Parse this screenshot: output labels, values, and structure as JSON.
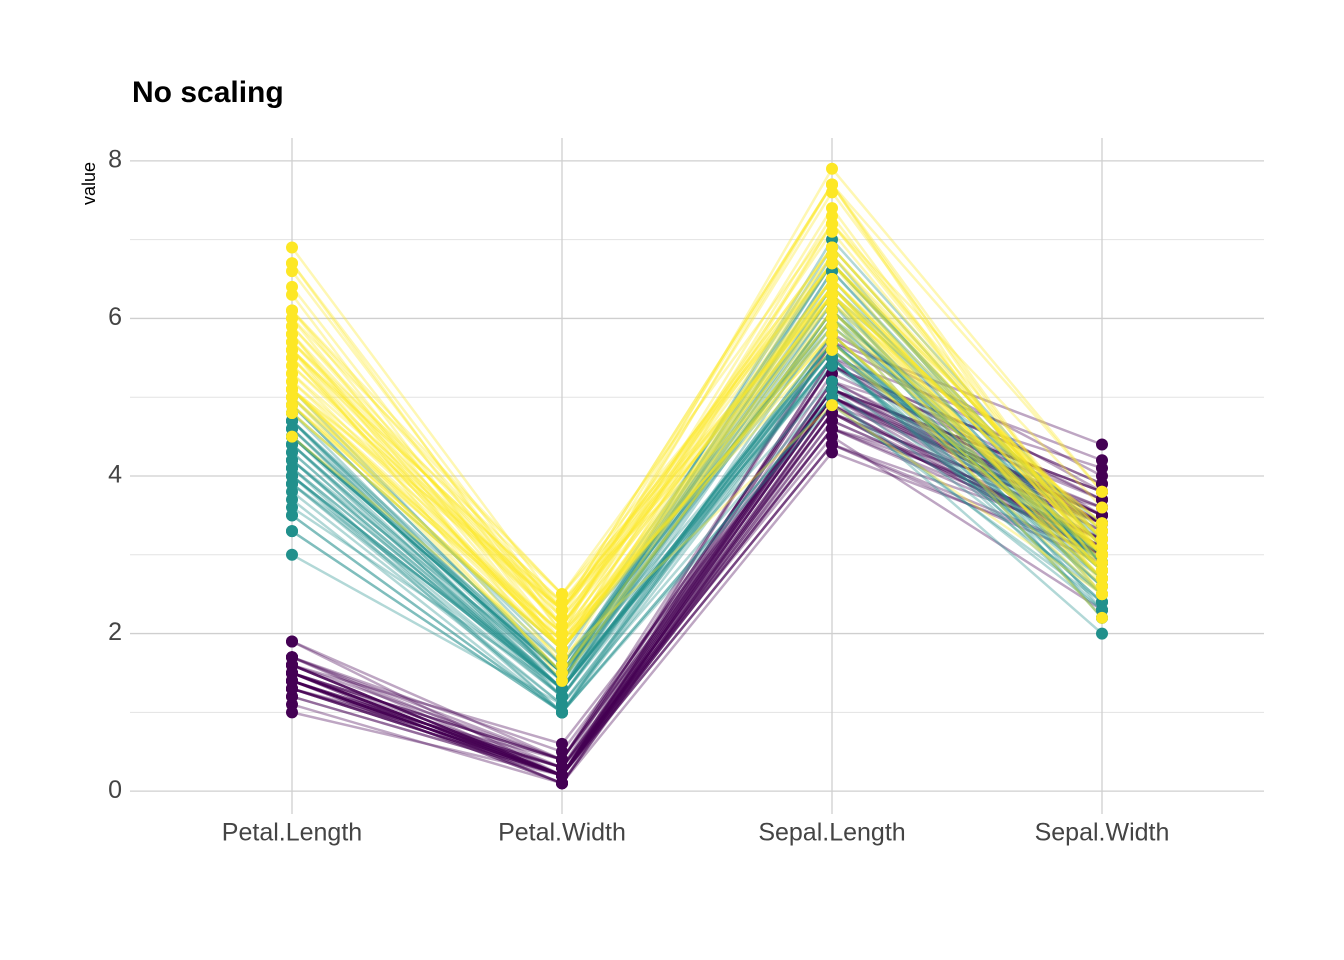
{
  "chart_data": {
    "type": "parallel",
    "title": "No scaling",
    "y_label": "value",
    "categories": [
      "Petal.Length",
      "Petal.Width",
      "Sepal.Length",
      "Sepal.Width"
    ],
    "ylim": [
      -0.29,
      8.29
    ],
    "yticks": [
      0,
      2,
      4,
      6,
      8
    ],
    "minor_yticks": [
      1,
      3,
      5,
      7
    ],
    "grid": true,
    "series": [
      {
        "color": "#440154",
        "lines": [
          [
            1.4,
            0.2,
            5.1,
            3.5
          ],
          [
            1.4,
            0.2,
            4.9,
            3.0
          ],
          [
            1.3,
            0.2,
            4.7,
            3.2
          ],
          [
            1.5,
            0.2,
            4.6,
            3.1
          ],
          [
            1.4,
            0.2,
            5.0,
            3.6
          ],
          [
            1.7,
            0.4,
            5.4,
            3.9
          ],
          [
            1.4,
            0.3,
            4.6,
            3.4
          ],
          [
            1.5,
            0.2,
            5.0,
            3.4
          ],
          [
            1.4,
            0.2,
            4.4,
            2.9
          ],
          [
            1.5,
            0.1,
            4.9,
            3.1
          ],
          [
            1.5,
            0.2,
            5.4,
            3.7
          ],
          [
            1.6,
            0.2,
            4.8,
            3.4
          ],
          [
            1.4,
            0.1,
            4.8,
            3.0
          ],
          [
            1.1,
            0.1,
            4.3,
            3.0
          ],
          [
            1.2,
            0.2,
            5.8,
            4.0
          ],
          [
            1.5,
            0.4,
            5.7,
            4.4
          ],
          [
            1.3,
            0.4,
            5.4,
            3.9
          ],
          [
            1.4,
            0.3,
            5.1,
            3.5
          ],
          [
            1.7,
            0.3,
            5.7,
            3.8
          ],
          [
            1.5,
            0.3,
            5.1,
            3.8
          ],
          [
            1.7,
            0.2,
            5.4,
            3.4
          ],
          [
            1.5,
            0.4,
            5.1,
            3.7
          ],
          [
            1.0,
            0.2,
            4.6,
            3.6
          ],
          [
            1.7,
            0.5,
            5.1,
            3.3
          ],
          [
            1.9,
            0.2,
            4.8,
            3.4
          ],
          [
            1.6,
            0.2,
            5.0,
            3.0
          ],
          [
            1.6,
            0.4,
            5.0,
            3.4
          ],
          [
            1.5,
            0.2,
            5.2,
            3.5
          ],
          [
            1.4,
            0.2,
            5.2,
            3.4
          ],
          [
            1.6,
            0.2,
            4.7,
            3.2
          ],
          [
            1.6,
            0.2,
            4.8,
            3.1
          ],
          [
            1.5,
            0.4,
            5.4,
            3.4
          ],
          [
            1.5,
            0.1,
            5.2,
            4.1
          ],
          [
            1.4,
            0.2,
            5.5,
            4.2
          ],
          [
            1.5,
            0.2,
            4.9,
            3.1
          ],
          [
            1.2,
            0.2,
            5.0,
            3.2
          ],
          [
            1.3,
            0.2,
            5.5,
            3.5
          ],
          [
            1.4,
            0.1,
            4.9,
            3.6
          ],
          [
            1.3,
            0.2,
            4.4,
            3.0
          ],
          [
            1.5,
            0.2,
            5.1,
            3.4
          ],
          [
            1.3,
            0.3,
            5.0,
            3.5
          ],
          [
            1.3,
            0.3,
            4.5,
            2.3
          ],
          [
            1.3,
            0.2,
            4.4,
            3.2
          ],
          [
            1.6,
            0.6,
            5.0,
            3.5
          ],
          [
            1.9,
            0.4,
            5.1,
            3.8
          ],
          [
            1.4,
            0.3,
            4.8,
            3.0
          ],
          [
            1.6,
            0.2,
            5.1,
            3.8
          ],
          [
            1.4,
            0.2,
            4.6,
            3.2
          ],
          [
            1.5,
            0.2,
            5.3,
            3.7
          ],
          [
            1.4,
            0.2,
            5.0,
            3.3
          ]
        ]
      },
      {
        "color": "#21908C",
        "lines": [
          [
            4.7,
            1.4,
            7.0,
            3.2
          ],
          [
            4.5,
            1.5,
            6.4,
            3.2
          ],
          [
            4.9,
            1.5,
            6.9,
            3.1
          ],
          [
            4.0,
            1.3,
            5.5,
            2.3
          ],
          [
            4.6,
            1.5,
            6.5,
            2.8
          ],
          [
            4.5,
            1.3,
            5.7,
            2.8
          ],
          [
            4.7,
            1.6,
            6.3,
            3.3
          ],
          [
            3.3,
            1.0,
            4.9,
            2.4
          ],
          [
            4.6,
            1.3,
            6.6,
            2.9
          ],
          [
            3.9,
            1.4,
            5.2,
            2.7
          ],
          [
            3.5,
            1.0,
            5.0,
            2.0
          ],
          [
            4.2,
            1.5,
            5.9,
            3.0
          ],
          [
            4.0,
            1.0,
            6.0,
            2.2
          ],
          [
            4.7,
            1.4,
            6.1,
            2.9
          ],
          [
            3.6,
            1.3,
            5.6,
            2.9
          ],
          [
            4.4,
            1.4,
            6.7,
            3.1
          ],
          [
            4.5,
            1.5,
            5.6,
            3.0
          ],
          [
            4.1,
            1.0,
            5.8,
            2.7
          ],
          [
            4.5,
            1.5,
            6.2,
            2.2
          ],
          [
            3.9,
            1.1,
            5.6,
            2.5
          ],
          [
            4.8,
            1.8,
            5.9,
            3.2
          ],
          [
            4.0,
            1.3,
            6.1,
            2.8
          ],
          [
            4.9,
            1.5,
            6.3,
            2.5
          ],
          [
            4.7,
            1.2,
            6.1,
            2.8
          ],
          [
            4.3,
            1.3,
            6.4,
            2.9
          ],
          [
            4.4,
            1.4,
            6.6,
            3.0
          ],
          [
            4.8,
            1.4,
            6.8,
            2.8
          ],
          [
            5.0,
            1.7,
            6.7,
            3.0
          ],
          [
            4.5,
            1.5,
            6.0,
            2.9
          ],
          [
            3.5,
            1.0,
            5.7,
            2.6
          ],
          [
            3.8,
            1.1,
            5.5,
            2.4
          ],
          [
            3.7,
            1.0,
            5.5,
            2.4
          ],
          [
            3.9,
            1.2,
            5.8,
            2.7
          ],
          [
            5.1,
            1.6,
            6.0,
            2.7
          ],
          [
            4.5,
            1.5,
            5.4,
            3.0
          ],
          [
            4.5,
            1.6,
            6.0,
            3.4
          ],
          [
            4.7,
            1.5,
            6.7,
            3.1
          ],
          [
            4.4,
            1.3,
            6.3,
            2.3
          ],
          [
            4.1,
            1.3,
            5.6,
            3.0
          ],
          [
            4.0,
            1.3,
            5.5,
            2.5
          ],
          [
            4.4,
            1.2,
            5.5,
            2.6
          ],
          [
            4.6,
            1.4,
            6.1,
            3.0
          ],
          [
            4.0,
            1.2,
            5.8,
            2.6
          ],
          [
            3.3,
            1.0,
            5.0,
            2.3
          ],
          [
            4.2,
            1.3,
            5.6,
            2.7
          ],
          [
            4.2,
            1.2,
            5.7,
            3.0
          ],
          [
            4.2,
            1.3,
            5.7,
            2.9
          ],
          [
            4.3,
            1.3,
            6.2,
            2.9
          ],
          [
            3.0,
            1.1,
            5.1,
            2.5
          ],
          [
            4.1,
            1.3,
            5.7,
            2.8
          ]
        ]
      },
      {
        "color": "#FDE725",
        "lines": [
          [
            6.0,
            2.5,
            6.3,
            3.3
          ],
          [
            5.1,
            1.9,
            5.8,
            2.7
          ],
          [
            5.9,
            2.1,
            7.1,
            3.0
          ],
          [
            5.6,
            1.8,
            6.3,
            2.9
          ],
          [
            5.8,
            2.2,
            6.5,
            3.0
          ],
          [
            6.6,
            2.1,
            7.6,
            3.0
          ],
          [
            4.5,
            1.7,
            4.9,
            2.5
          ],
          [
            6.3,
            1.8,
            7.3,
            2.9
          ],
          [
            5.8,
            1.8,
            6.7,
            2.5
          ],
          [
            6.1,
            2.5,
            7.2,
            3.6
          ],
          [
            5.1,
            2.0,
            6.5,
            3.2
          ],
          [
            5.3,
            1.9,
            6.4,
            2.7
          ],
          [
            5.5,
            2.1,
            6.8,
            3.0
          ],
          [
            5.0,
            2.0,
            5.7,
            2.5
          ],
          [
            5.1,
            2.4,
            5.8,
            2.8
          ],
          [
            5.3,
            2.3,
            6.4,
            3.2
          ],
          [
            5.5,
            1.8,
            6.5,
            3.0
          ],
          [
            6.7,
            2.2,
            7.7,
            3.8
          ],
          [
            6.9,
            2.3,
            7.7,
            2.6
          ],
          [
            5.0,
            1.5,
            6.0,
            2.2
          ],
          [
            5.7,
            2.3,
            6.9,
            3.2
          ],
          [
            4.9,
            2.0,
            5.6,
            2.8
          ],
          [
            6.7,
            2.0,
            7.7,
            2.8
          ],
          [
            4.9,
            1.8,
            6.3,
            2.7
          ],
          [
            5.7,
            2.1,
            6.7,
            3.3
          ],
          [
            6.0,
            1.8,
            7.2,
            3.2
          ],
          [
            4.8,
            1.8,
            6.2,
            2.8
          ],
          [
            4.9,
            1.8,
            6.1,
            3.0
          ],
          [
            5.6,
            2.1,
            6.4,
            2.8
          ],
          [
            5.8,
            1.6,
            7.2,
            3.0
          ],
          [
            6.1,
            1.9,
            7.4,
            2.8
          ],
          [
            6.4,
            2.0,
            7.9,
            3.8
          ],
          [
            5.6,
            2.2,
            6.4,
            2.8
          ],
          [
            5.1,
            1.5,
            6.3,
            2.8
          ],
          [
            5.6,
            1.4,
            6.1,
            2.6
          ],
          [
            6.1,
            2.3,
            7.7,
            3.0
          ],
          [
            5.6,
            2.4,
            6.3,
            3.4
          ],
          [
            5.5,
            1.8,
            6.4,
            3.1
          ],
          [
            4.8,
            1.8,
            6.0,
            3.0
          ],
          [
            5.4,
            2.1,
            6.9,
            3.1
          ],
          [
            5.6,
            2.4,
            6.7,
            3.1
          ],
          [
            5.1,
            2.3,
            6.9,
            3.1
          ],
          [
            5.1,
            1.9,
            5.8,
            2.7
          ],
          [
            5.9,
            2.3,
            6.8,
            3.2
          ],
          [
            5.7,
            2.5,
            6.7,
            3.3
          ],
          [
            5.2,
            2.3,
            6.7,
            3.0
          ],
          [
            5.0,
            1.9,
            6.3,
            2.5
          ],
          [
            5.2,
            2.0,
            6.5,
            3.0
          ],
          [
            5.4,
            2.3,
            6.2,
            3.4
          ],
          [
            5.1,
            1.8,
            5.9,
            3.0
          ]
        ]
      }
    ]
  }
}
